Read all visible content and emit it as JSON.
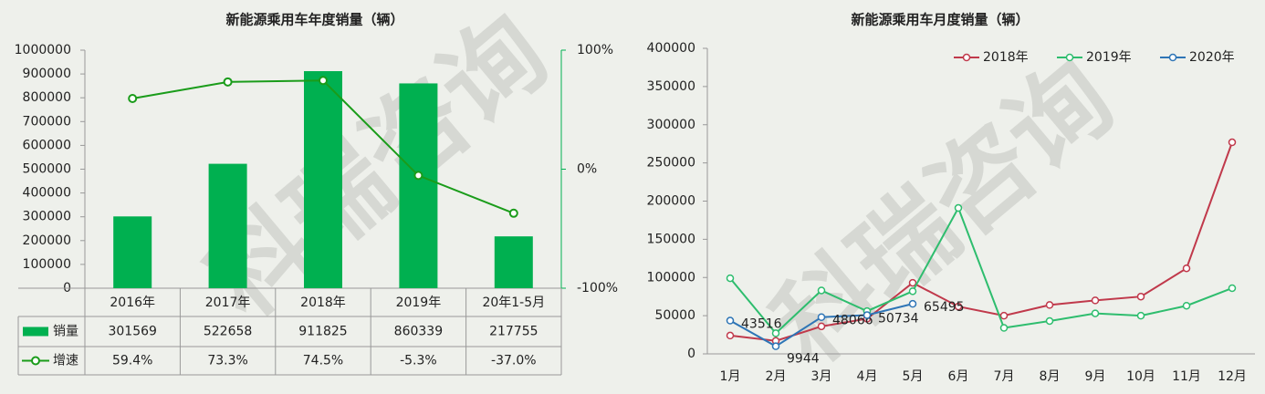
{
  "watermark": "科瑞咨询",
  "chart_data": [
    {
      "type": "combo",
      "title": "新能源乘用车年度销量（辆）",
      "categories": [
        "2016年",
        "2017年",
        "2018年",
        "2019年",
        "20年1-5月"
      ],
      "series": [
        {
          "name": "销量",
          "type": "bar",
          "color": "#00b050",
          "values": [
            301569,
            522658,
            911825,
            860339,
            217755
          ]
        },
        {
          "name": "增速",
          "type": "line",
          "axis": "y2",
          "color": "#1a9c1a",
          "values": [
            59.4,
            73.3,
            74.5,
            -5.3,
            -37.0
          ],
          "value_labels": [
            "59.4%",
            "73.3%",
            "74.5%",
            "-5.3%",
            "-37.0%"
          ]
        }
      ],
      "ylim": [
        0,
        1000000
      ],
      "yticks": [
        0,
        100000,
        200000,
        300000,
        400000,
        500000,
        600000,
        700000,
        800000,
        900000,
        1000000
      ],
      "y2lim": [
        -100,
        100
      ],
      "y2ticks": [
        {
          "value": -100,
          "label": "-100%"
        },
        {
          "value": 0,
          "label": "0%"
        },
        {
          "value": 100,
          "label": "100%"
        }
      ],
      "data_table": true
    },
    {
      "type": "line",
      "title": "新能源乘用车月度销量（辆）",
      "categories": [
        "1月",
        "2月",
        "3月",
        "4月",
        "5月",
        "6月",
        "7月",
        "8月",
        "9月",
        "10月",
        "11月",
        "12月"
      ],
      "series": [
        {
          "name": "2018年",
          "color": "#c0394b",
          "values": [
            24000,
            17000,
            36000,
            46000,
            93000,
            62000,
            50000,
            64000,
            70000,
            75000,
            112000,
            277000
          ]
        },
        {
          "name": "2019年",
          "color": "#2ebd6e",
          "values": [
            99000,
            27000,
            83000,
            56000,
            82000,
            191000,
            34000,
            43000,
            53000,
            50000,
            63000,
            86000
          ]
        },
        {
          "name": "2020年",
          "color": "#2e75b6",
          "values": [
            43516,
            9944,
            48066,
            50734,
            65495,
            null,
            null,
            null,
            null,
            null,
            null,
            null
          ],
          "data_labels": true
        }
      ],
      "ylim": [
        0,
        400000
      ],
      "yticks": [
        0,
        50000,
        100000,
        150000,
        200000,
        250000,
        300000,
        350000,
        400000
      ],
      "legend": "top"
    }
  ]
}
